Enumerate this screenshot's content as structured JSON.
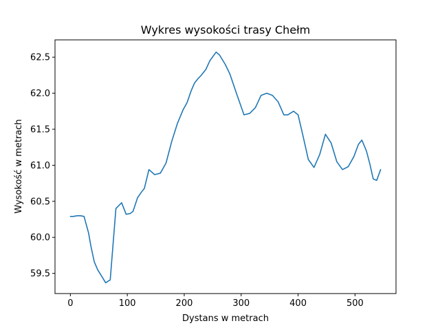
{
  "chart_data": {
    "type": "line",
    "title": "Wykres wysokości trasy Chełm",
    "xlabel": "Dystans w metrach",
    "ylabel": "Wysokość w metrach",
    "xlim": [
      -27,
      572
    ],
    "ylim": [
      59.22,
      62.74
    ],
    "xticks": [
      0,
      100,
      200,
      300,
      400,
      500
    ],
    "yticks": [
      59.5,
      60.0,
      60.5,
      61.0,
      61.5,
      62.0,
      62.5
    ],
    "xtick_labels": [
      "0",
      "100",
      "200",
      "300",
      "400",
      "500"
    ],
    "ytick_labels": [
      "59.5",
      "60.0",
      "60.5",
      "61.0",
      "61.5",
      "62.0",
      "62.5"
    ],
    "grid": false,
    "line_color": "#1f77b4",
    "series": [
      {
        "x": [
          0,
          5,
          12,
          18,
          24,
          32,
          36,
          42,
          48,
          55,
          62,
          70,
          80,
          90,
          98,
          105,
          110,
          118,
          125,
          130,
          138,
          148,
          158,
          168,
          178,
          188,
          198,
          205,
          212,
          218,
          224,
          230,
          238,
          245,
          256,
          262,
          272,
          280,
          293,
          305,
          315,
          325,
          335,
          345,
          355,
          365,
          375,
          382,
          392,
          400,
          408,
          418,
          428,
          438,
          448,
          458,
          468,
          478,
          488,
          498,
          506,
          512,
          520,
          526,
          532,
          538,
          545
        ],
        "values": [
          60.29,
          60.29,
          60.3,
          60.3,
          60.29,
          60.06,
          59.88,
          59.66,
          59.55,
          59.46,
          59.37,
          59.41,
          60.4,
          60.48,
          60.32,
          60.33,
          60.36,
          60.55,
          60.63,
          60.68,
          60.94,
          60.87,
          60.89,
          61.03,
          61.33,
          61.58,
          61.77,
          61.87,
          62.03,
          62.14,
          62.2,
          62.25,
          62.33,
          62.45,
          62.57,
          62.53,
          62.4,
          62.27,
          61.97,
          61.7,
          61.72,
          61.8,
          61.97,
          62.0,
          61.97,
          61.88,
          61.7,
          61.7,
          61.75,
          61.7,
          61.43,
          61.08,
          60.97,
          61.15,
          61.43,
          61.31,
          61.05,
          60.94,
          60.98,
          61.12,
          61.29,
          61.35,
          61.2,
          61.02,
          60.81,
          60.79,
          60.94
        ]
      }
    ]
  }
}
